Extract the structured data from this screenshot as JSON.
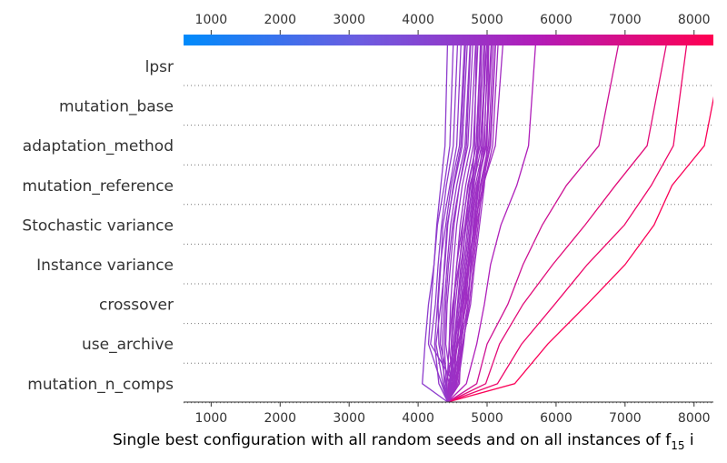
{
  "chart_data": {
    "type": "decision_plot",
    "xlabel": "Single best configuration with all random seeds and on all instances of f",
    "xlabel_subscript": "15",
    "xlabel_tail": " i",
    "xlim": [
      600,
      8280
    ],
    "xticks": [
      1000,
      2000,
      3000,
      4000,
      5000,
      6000,
      7000,
      8000
    ],
    "base_value": 4430,
    "features": [
      "lpsr",
      "mutation_base",
      "adaptation_method",
      "mutation_reference",
      "Stochastic variance",
      "Instance variance",
      "crossover",
      "use_archive",
      "mutation_n_comps"
    ],
    "colorbar": {
      "range": [
        600,
        8280
      ],
      "colors": [
        "#008bfb",
        "#6c5ce0",
        "#b21cb8",
        "#ff0052"
      ]
    },
    "series": [
      {
        "values": [
          4430,
          5400,
          5880,
          6450,
          7000,
          7420,
          7680,
          8150
        ]
      },
      {
        "values": [
          4430,
          5150,
          5500,
          5980,
          6450,
          6990,
          7380,
          7700
        ]
      },
      {
        "values": [
          4430,
          4980,
          5180,
          5520,
          5950,
          6420,
          6860,
          7320
        ]
      },
      {
        "values": [
          4430,
          4850,
          5000,
          5300,
          5520,
          5800,
          6150,
          6620
        ]
      },
      {
        "values": [
          4430,
          4700,
          4850,
          4960,
          5050,
          5200,
          5430,
          5600
        ]
      },
      {
        "values": [
          4430,
          4600,
          4620,
          4660,
          4720,
          4820,
          4940,
          5120
        ]
      },
      {
        "values": [
          4430,
          4520,
          4560,
          4620,
          4730,
          4820,
          4880,
          4960
        ]
      },
      {
        "values": [
          4430,
          4060,
          4100,
          4150,
          4230,
          4270,
          4330,
          4390
        ]
      },
      {
        "values": [
          4430,
          4340,
          4150,
          4190,
          4230,
          4280,
          4380,
          4460
        ]
      },
      {
        "values": [
          4430,
          4520,
          4180,
          4250,
          4290,
          4340,
          4410,
          4510
        ]
      },
      {
        "values": [
          4430,
          4400,
          4300,
          4290,
          4330,
          4360,
          4460,
          4560
        ]
      },
      {
        "values": [
          4430,
          4300,
          4240,
          4280,
          4320,
          4400,
          4480,
          4600
        ]
      },
      {
        "values": [
          4430,
          4450,
          4320,
          4350,
          4380,
          4420,
          4520,
          4640
        ]
      },
      {
        "values": [
          4430,
          4380,
          4350,
          4380,
          4420,
          4470,
          4560,
          4680
        ]
      },
      {
        "values": [
          4430,
          4480,
          4400,
          4420,
          4470,
          4520,
          4600,
          4720
        ]
      },
      {
        "values": [
          4430,
          4420,
          4450,
          4470,
          4510,
          4560,
          4640,
          4760
        ]
      },
      {
        "values": [
          4430,
          4510,
          4480,
          4520,
          4560,
          4610,
          4690,
          4800
        ]
      },
      {
        "values": [
          4430,
          4460,
          4500,
          4540,
          4600,
          4650,
          4720,
          4840
        ]
      },
      {
        "values": [
          4430,
          4540,
          4530,
          4580,
          4640,
          4690,
          4760,
          4880
        ]
      },
      {
        "values": [
          4430,
          4500,
          4570,
          4620,
          4680,
          4740,
          4800,
          4920
        ]
      },
      {
        "values": [
          4430,
          4470,
          4560,
          4650,
          4700,
          4770,
          4830,
          4950
        ]
      },
      {
        "values": [
          4430,
          4550,
          4600,
          4690,
          4740,
          4810,
          4860,
          4990
        ]
      },
      {
        "values": [
          4430,
          4490,
          4620,
          4720,
          4770,
          4840,
          4900,
          5020
        ]
      },
      {
        "values": [
          4430,
          4560,
          4650,
          4740,
          4800,
          4870,
          4930,
          5050
        ]
      },
      {
        "values": [
          4430,
          4440,
          4580,
          4700,
          4780,
          4850,
          4950,
          5080
        ]
      },
      {
        "values": [
          4430,
          4530,
          4640,
          4760,
          4820,
          4890,
          4960,
          5000
        ]
      },
      {
        "values": [
          4430,
          4410,
          4520,
          4640,
          4740,
          4830,
          4910,
          5040
        ]
      },
      {
        "values": [
          4430,
          4580,
          4660,
          4720,
          4760,
          4800,
          4870,
          4930
        ]
      },
      {
        "values": [
          4430,
          4520,
          4600,
          4640,
          4700,
          4760,
          4810,
          4880
        ]
      },
      {
        "values": [
          4430,
          4460,
          4520,
          4570,
          4620,
          4700,
          4790,
          4860
        ]
      },
      {
        "values": [
          4430,
          4530,
          4480,
          4510,
          4560,
          4640,
          4730,
          4840
        ]
      },
      {
        "values": [
          4430,
          4470,
          4540,
          4600,
          4660,
          4720,
          4780,
          4820
        ]
      },
      {
        "values": [
          4430,
          4410,
          4380,
          4400,
          4440,
          4500,
          4600,
          4700
        ]
      },
      {
        "values": [
          4430,
          4360,
          4260,
          4330,
          4390,
          4430,
          4510,
          4620
        ]
      },
      {
        "values": [
          4430,
          4500,
          4450,
          4500,
          4590,
          4680,
          4750,
          4900
        ]
      },
      {
        "values": [
          4430,
          4560,
          4620,
          4680,
          4720,
          4780,
          4850,
          4980
        ]
      }
    ]
  }
}
